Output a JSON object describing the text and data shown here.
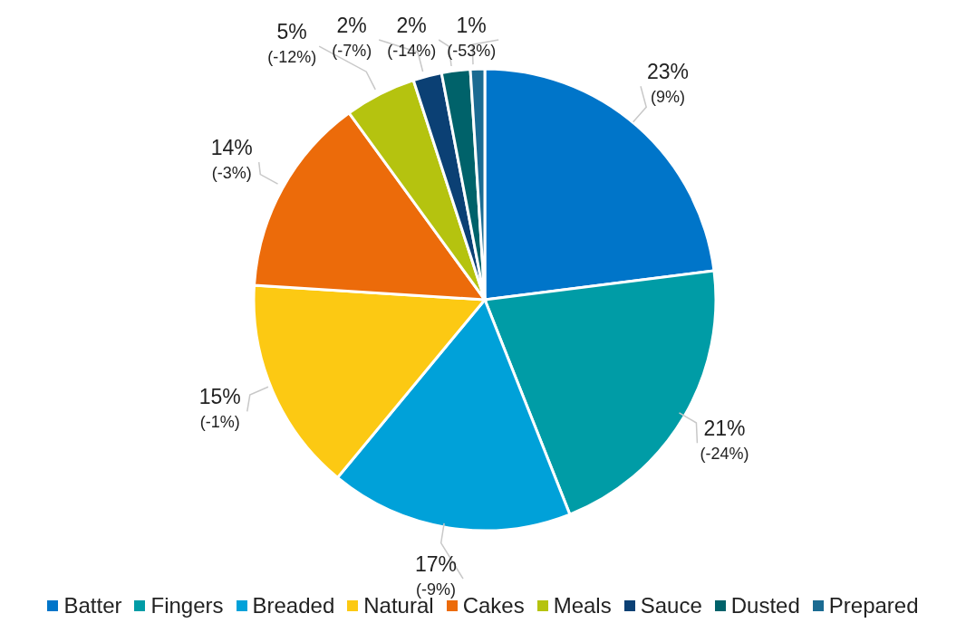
{
  "chart_data": {
    "type": "pie",
    "categories": [
      "Batter",
      "Fingers",
      "Breaded",
      "Natural",
      "Cakes",
      "Meals",
      "Sauce",
      "Dusted",
      "Prepared"
    ],
    "values": [
      23,
      21,
      17,
      15,
      14,
      5,
      2,
      2,
      1
    ],
    "colors": [
      "#0075c9",
      "#009ca6",
      "#00a1d9",
      "#fcc913",
      "#ec6b0a",
      "#b5c30f",
      "#0b4074",
      "#00626a",
      "#1b6b92"
    ],
    "value_labels": [
      "23%\n(9%)",
      "21%\n(-24%)",
      "17%\n(-9%)",
      "15%\n(-1%)",
      "14%\n(-3%)",
      "5%\n(-12%)",
      "2%\n(-7%)",
      "2%\n(-14%)",
      "1%\n(-53%)"
    ],
    "legend": "bottom"
  }
}
